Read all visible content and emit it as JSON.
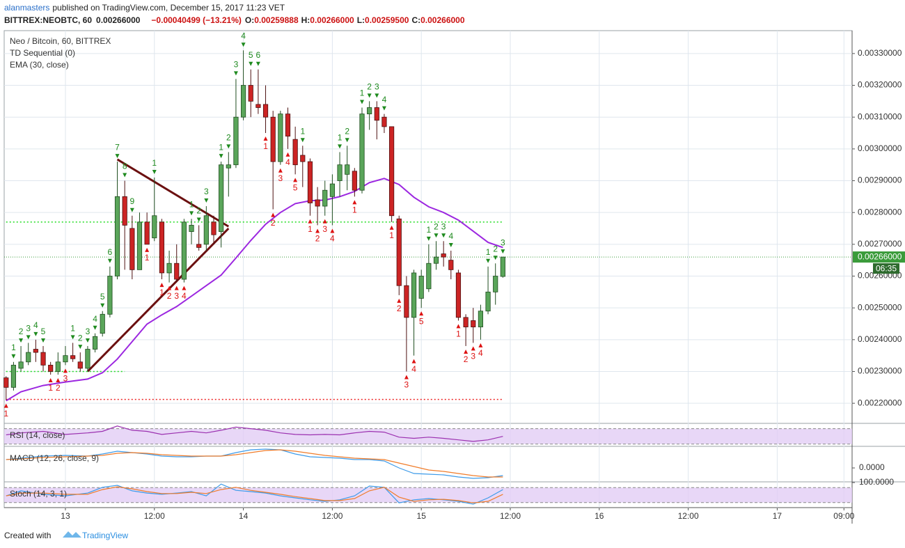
{
  "header": {
    "author": "alanmasters",
    "text": "published on TradingView.com, December 15, 2017 11:23 VET",
    "symbol": "BITTREX:NEOBTC, 60",
    "last": "0.00266000",
    "change": "−0.00040499 (−13.21%)",
    "ohlc": [
      {
        "label": "O:",
        "value": "0.00259888"
      },
      {
        "label": "H:",
        "value": "0.00266000"
      },
      {
        "label": "L:",
        "value": "0.00259500"
      },
      {
        "label": "C:",
        "value": "0.00266000"
      }
    ]
  },
  "footer": {
    "text": "Created with",
    "brand": "TradingView"
  },
  "chart_data": [
    {
      "type": "candlestick",
      "title": "Neo / Bitcoin, 60, BITTREX",
      "x": [
        -8,
        -7,
        -6,
        -5,
        -4,
        -3,
        -2,
        -1,
        0,
        1,
        2,
        3,
        4,
        5,
        6,
        7,
        8,
        9,
        10,
        11,
        12,
        13,
        14,
        15,
        16,
        17,
        18,
        19,
        20,
        21,
        22,
        23,
        24,
        25,
        26,
        27,
        28,
        29,
        30,
        31,
        32,
        33,
        34,
        35,
        36,
        37,
        38,
        39,
        40,
        41,
        42,
        43,
        44,
        45,
        46,
        47,
        48,
        49,
        50,
        51,
        52,
        53,
        54,
        55,
        56,
        57,
        58,
        59
      ],
      "open": [
        0.00228,
        0.00225,
        0.00231,
        0.00233,
        0.00237,
        0.00236,
        0.00232,
        0.0023,
        0.00233,
        0.00235,
        0.00233,
        0.00231,
        0.00237,
        0.00242,
        0.00248,
        0.0026,
        0.00285,
        0.00275,
        0.00262,
        0.00277,
        0.00272,
        0.00277,
        0.00261,
        0.00264,
        0.00259,
        0.00274,
        0.0027,
        0.0027,
        0.00277,
        0.00274,
        0.00294,
        0.00295,
        0.0031,
        0.0032,
        0.00314,
        0.00314,
        0.0031,
        0.00296,
        0.00311,
        0.00303,
        0.00298,
        0.00296,
        0.00284,
        0.00282,
        0.00285,
        0.0029,
        0.00292,
        0.00293,
        0.00287,
        0.00311,
        0.00313,
        0.0031,
        0.00307,
        0.00278,
        0.00257,
        0.00247,
        0.00253,
        0.00256,
        0.00264,
        0.00267,
        0.00265,
        0.00261,
        0.00247,
        0.00246,
        0.00244,
        0.00249,
        0.00255,
        0.00259888
      ],
      "high": [
        0.002285,
        0.00233,
        0.00238,
        0.00239,
        0.0024,
        0.00238,
        0.00233,
        0.00236,
        0.00238,
        0.00239,
        0.00236,
        0.00238,
        0.00242,
        0.00249,
        0.00263,
        0.00296,
        0.0029,
        0.00279,
        0.0028,
        0.0028,
        0.00291,
        0.00278,
        0.00268,
        0.0027,
        0.00278,
        0.00278,
        0.00276,
        0.00282,
        0.00279,
        0.00296,
        0.00299,
        0.00322,
        0.00331,
        0.00325,
        0.00325,
        0.0032,
        0.00312,
        0.00312,
        0.00313,
        0.00307,
        0.00301,
        0.00297,
        0.00288,
        0.0029,
        0.00292,
        0.00299,
        0.00301,
        0.00294,
        0.00313,
        0.00315,
        0.00315,
        0.00311,
        0.00307,
        0.00279,
        0.0026,
        0.00262,
        0.00262,
        0.0027,
        0.00271,
        0.00271,
        0.00268,
        0.00262,
        0.00248,
        0.0025,
        0.00251,
        0.00263,
        0.00264,
        0.00266
      ],
      "low": [
        0.00221,
        0.00224,
        0.0023,
        0.00232,
        0.00233,
        0.0023,
        0.00229,
        0.00229,
        0.00232,
        0.00233,
        0.0023,
        0.0023,
        0.00236,
        0.00241,
        0.00247,
        0.00259,
        0.00262,
        0.00259,
        0.00262,
        0.0027,
        0.00271,
        0.00259,
        0.00258,
        0.00258,
        0.00258,
        0.0027,
        0.00268,
        0.00268,
        0.0027,
        0.00269,
        0.00285,
        0.00294,
        0.00309,
        0.0031,
        0.00311,
        0.00305,
        0.00281,
        0.00295,
        0.003,
        0.00292,
        0.00288,
        0.00279,
        0.00276,
        0.00279,
        0.00276,
        0.00285,
        0.00287,
        0.00285,
        0.00286,
        0.00306,
        0.00303,
        0.00305,
        0.00277,
        0.00254,
        0.0023,
        0.00235,
        0.0025,
        0.00255,
        0.00262,
        0.00263,
        0.00259,
        0.00246,
        0.00238,
        0.00239,
        0.0024,
        0.00248,
        0.00251,
        0.002595
      ],
      "close": [
        0.00225,
        0.00232,
        0.00233,
        0.00236,
        0.00236,
        0.00232,
        0.0023,
        0.00233,
        0.00235,
        0.00234,
        0.00231,
        0.00237,
        0.00241,
        0.00248,
        0.0026,
        0.00285,
        0.00276,
        0.00262,
        0.00277,
        0.0027,
        0.00279,
        0.00261,
        0.00264,
        0.00259,
        0.00277,
        0.00276,
        0.00269,
        0.00279,
        0.00273,
        0.00295,
        0.00295,
        0.0031,
        0.0032,
        0.00315,
        0.00313,
        0.0031,
        0.00296,
        0.00311,
        0.00304,
        0.00295,
        0.00296,
        0.00283,
        0.00282,
        0.00287,
        0.00289,
        0.00295,
        0.00295,
        0.00287,
        0.00311,
        0.00313,
        0.00309,
        0.00307,
        0.00279,
        0.00257,
        0.00247,
        0.00261,
        0.0026,
        0.00264,
        0.00266,
        0.00266,
        0.00262,
        0.00247,
        0.00244,
        0.00244,
        0.00249,
        0.00255,
        0.0026,
        0.00266
      ],
      "up_color": "#5aa55a",
      "down_color": "#cc2424",
      "ema": {
        "name": "EMA (30, close)",
        "color": "#9c27e0",
        "x": [
          -8,
          -6,
          -3,
          0,
          3,
          5,
          7,
          9,
          11,
          13,
          15,
          17,
          19,
          21,
          23,
          25,
          27,
          29,
          31,
          33,
          35,
          37,
          39,
          41,
          43,
          45,
          47,
          49,
          51,
          53,
          55,
          57,
          59
        ],
        "values": [
          0.002208,
          0.002236,
          0.002256,
          0.002267,
          0.002276,
          0.002296,
          0.002339,
          0.002394,
          0.002449,
          0.002478,
          0.002504,
          0.002537,
          0.00257,
          0.002603,
          0.002657,
          0.002712,
          0.002763,
          0.0028,
          0.002828,
          0.002837,
          0.002839,
          0.00285,
          0.002866,
          0.002894,
          0.002907,
          0.002888,
          0.002848,
          0.002818,
          0.0028,
          0.002776,
          0.002741,
          0.002706,
          0.00269
        ]
      },
      "td": {
        "name": "TD Sequential (0)",
        "green": {
          "color": "#1e8a1e",
          "x": [
            -7,
            -6,
            -5,
            -4,
            -3,
            1,
            2,
            3,
            4,
            5,
            6,
            7,
            8,
            9,
            12,
            17,
            18,
            19,
            21,
            22,
            23,
            24,
            25,
            26,
            32,
            37,
            38,
            40,
            41,
            42,
            43,
            49,
            50,
            51,
            52,
            57,
            58,
            59
          ],
          "counts": [
            1,
            2,
            3,
            4,
            5,
            1,
            2,
            3,
            4,
            5,
            6,
            7,
            8,
            9,
            1,
            1,
            2,
            3,
            1,
            2,
            3,
            4,
            5,
            6,
            1,
            1,
            2,
            1,
            2,
            3,
            4,
            1,
            2,
            3,
            4,
            1,
            2,
            3
          ]
        },
        "red": {
          "color": "#dd1111",
          "x": [
            -8,
            -2,
            -1,
            0,
            11,
            13,
            14,
            15,
            16,
            27,
            28,
            29,
            30,
            31,
            33,
            34,
            35,
            36,
            39,
            44,
            45,
            46,
            47,
            48,
            53,
            54,
            55,
            56
          ],
          "counts": [
            1,
            1,
            2,
            3,
            1,
            1,
            2,
            3,
            4,
            1,
            2,
            3,
            4,
            5,
            1,
            2,
            3,
            4,
            1,
            1,
            2,
            3,
            4,
            5,
            1,
            2,
            3,
            4
          ]
        }
      },
      "levels": [
        {
          "value": 0.00277,
          "x": [
            -8,
            59
          ],
          "color": "#22dd22"
        },
        {
          "value": 0.002212,
          "x": [
            -8,
            59
          ],
          "color": "#ee2222"
        },
        {
          "value": 0.0023,
          "x": [
            -8,
            8
          ],
          "color": "#22dd22"
        }
      ],
      "trendlines": {
        "color": "#6b1010",
        "lines": [
          {
            "x": [
              7,
              22
            ],
            "values": [
              0.002967,
              0.002756
            ]
          },
          {
            "x": [
              3,
              22
            ],
            "values": [
              0.0023,
              0.00275
            ]
          }
        ]
      },
      "last_price": {
        "value": 0.00266,
        "label": "0.00266000",
        "countdown": "06:35",
        "color": "#3a9b3a"
      },
      "xlim": [
        -8.26,
        106.1
      ],
      "xticks": [
        {
          "value": 0,
          "label": "13"
        },
        {
          "value": 12,
          "label": "12:00"
        },
        {
          "value": 24,
          "label": "14"
        },
        {
          "value": 36,
          "label": "12:00"
        },
        {
          "value": 48,
          "label": "15"
        },
        {
          "value": 60,
          "label": "12:00"
        },
        {
          "value": 72,
          "label": "16"
        },
        {
          "value": 84,
          "label": "12:00"
        },
        {
          "value": 96,
          "label": "17"
        },
        {
          "value": 105,
          "label": "09:00"
        }
      ],
      "ylim": [
        0.002139,
        0.003372
      ],
      "yticks": [
        {
          "value": 0.0022,
          "label": "0.00220000"
        },
        {
          "value": 0.0023,
          "label": "0.00230000"
        },
        {
          "value": 0.0024,
          "label": "0.00240000"
        },
        {
          "value": 0.0025,
          "label": "0.00250000"
        },
        {
          "value": 0.0026,
          "label": "0.00260000"
        },
        {
          "value": 0.0027,
          "label": "0.00270000"
        },
        {
          "value": 0.0028,
          "label": "0.00280000"
        },
        {
          "value": 0.0029,
          "label": "0.00290000"
        },
        {
          "value": 0.003,
          "label": "0.00300000"
        },
        {
          "value": 0.0031,
          "label": "0.00310000"
        },
        {
          "value": 0.0032,
          "label": "0.00320000"
        },
        {
          "value": 0.0033,
          "label": "0.00330000"
        }
      ],
      "grid": true
    },
    {
      "type": "line",
      "title": "RSI (14, close)",
      "xlim": [
        -8.26,
        106.1
      ],
      "ylim": [
        26,
        82
      ],
      "band": [
        30,
        70
      ],
      "band_color": "#e2cdf5",
      "series": [
        {
          "color": "#9b30b0",
          "x": [
            -8,
            -6,
            -3,
            0,
            3,
            5,
            7,
            9,
            11,
            13,
            15,
            17,
            19,
            21,
            23,
            25,
            27,
            29,
            31,
            33,
            35,
            37,
            39,
            41,
            43,
            45,
            47,
            49,
            51,
            53,
            55,
            57,
            59
          ],
          "values": [
            54,
            59,
            63,
            55,
            59,
            63,
            77,
            66,
            63,
            55,
            59,
            63,
            59,
            66,
            74,
            70,
            66,
            59,
            55,
            54,
            55,
            54,
            59,
            63,
            61,
            48,
            45,
            48,
            45,
            41,
            37,
            41,
            50
          ]
        }
      ]
    },
    {
      "type": "line",
      "title": "MACD (12, 26, close, 9)",
      "xlim": [
        -8.26,
        106.1
      ],
      "ylim": [
        -3.33e-05,
        5.56e-05
      ],
      "yticks": [
        {
          "value": 0,
          "label": "0.0000"
        }
      ],
      "series": [
        {
          "color": "#3d9be9",
          "x": [
            -8,
            -6,
            -3,
            0,
            3,
            5,
            7,
            9,
            11,
            13,
            15,
            17,
            19,
            21,
            23,
            25,
            27,
            29,
            31,
            33,
            35,
            37,
            39,
            41,
            43,
            45,
            47,
            49,
            51,
            53,
            55,
            57,
            59
          ],
          "values": [
            2.22e-05,
            2.59e-05,
            3.15e-05,
            3.33e-05,
            3.15e-05,
            3.7e-05,
            4.44e-05,
            4.07e-05,
            3.7e-05,
            3.15e-05,
            2.96e-05,
            2.96e-05,
            3.15e-05,
            3.15e-05,
            4.07e-05,
            4.81e-05,
            5e-05,
            4.81e-05,
            3.7e-05,
            2.96e-05,
            2.78e-05,
            2.59e-05,
            2.22e-05,
            2.22e-05,
            1.85e-05,
            0,
            -1.48e-05,
            -1.67e-05,
            -1.85e-05,
            -2.41e-05,
            -2.78e-05,
            -2.59e-05,
            -2.04e-05
          ]
        },
        {
          "color": "#f07c2a",
          "x": [
            -8,
            -6,
            -3,
            0,
            3,
            5,
            7,
            9,
            11,
            13,
            15,
            17,
            19,
            21,
            23,
            25,
            27,
            29,
            31,
            33,
            35,
            37,
            39,
            41,
            43,
            45,
            47,
            49,
            51,
            53,
            55,
            57,
            59
          ],
          "values": [
            2.22e-05,
            2.41e-05,
            2.78e-05,
            2.96e-05,
            3.15e-05,
            3.33e-05,
            3.89e-05,
            4.07e-05,
            3.89e-05,
            3.52e-05,
            3.33e-05,
            3.15e-05,
            3.15e-05,
            3.15e-05,
            3.52e-05,
            4.07e-05,
            4.63e-05,
            4.81e-05,
            4.44e-05,
            3.89e-05,
            3.33e-05,
            2.96e-05,
            2.59e-05,
            2.41e-05,
            2.22e-05,
            1.3e-05,
            3.7e-06,
            -5.6e-06,
            -9.3e-06,
            -1.48e-05,
            -2.04e-05,
            -2.41e-05,
            -2.41e-05
          ]
        }
      ]
    },
    {
      "type": "line",
      "title": "Stoch (14, 3, 1)",
      "xlim": [
        -8.26,
        106.1
      ],
      "ylim": [
        0,
        100
      ],
      "band": [
        20,
        80
      ],
      "band_color": "#e2cdf5",
      "yticks": [
        {
          "value": 100,
          "label": "100.0000"
        }
      ],
      "series": [
        {
          "color": "#3d9be9",
          "x": [
            -8,
            -6,
            -3,
            0,
            3,
            5,
            7,
            9,
            11,
            13,
            15,
            17,
            19,
            21,
            23,
            25,
            27,
            29,
            31,
            33,
            35,
            37,
            39,
            41,
            43,
            45,
            47,
            49,
            51,
            53,
            55,
            57,
            59
          ],
          "values": [
            47,
            67,
            53,
            47,
            58,
            81,
            89,
            67,
            58,
            53,
            58,
            64,
            47,
            94,
            69,
            64,
            58,
            47,
            39,
            31,
            25,
            31,
            47,
            86,
            81,
            19,
            31,
            36,
            31,
            25,
            14,
            39,
            72
          ]
        },
        {
          "color": "#f07c2a",
          "x": [
            -8,
            -6,
            -3,
            0,
            3,
            5,
            7,
            9,
            11,
            13,
            15,
            17,
            19,
            21,
            23,
            25,
            27,
            29,
            31,
            33,
            35,
            37,
            39,
            41,
            43,
            45,
            47,
            49,
            51,
            53,
            55,
            57,
            59
          ],
          "values": [
            47,
            58,
            58,
            53,
            53,
            72,
            83,
            75,
            64,
            56,
            56,
            61,
            56,
            72,
            81,
            69,
            61,
            53,
            44,
            36,
            28,
            28,
            36,
            67,
            81,
            42,
            25,
            31,
            33,
            28,
            19,
            25,
            53
          ]
        }
      ]
    }
  ]
}
